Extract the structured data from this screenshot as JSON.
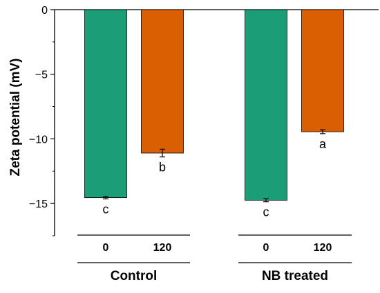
{
  "chart_data": {
    "type": "bar",
    "title": "",
    "xlabel": "",
    "ylabel": "Zeta potential (mV)",
    "ylim": [
      -17.5,
      0
    ],
    "yticks": [
      0,
      -5,
      -10,
      -15
    ],
    "ytick_labels": [
      "0",
      "−5",
      "−10",
      "−15"
    ],
    "grid": false,
    "groups": [
      {
        "name": "Control",
        "bars": [
          {
            "x_label": "0",
            "value": -14.55,
            "error": 0.1,
            "letter": "c",
            "color": "#1b9e77"
          },
          {
            "x_label": "120",
            "value": -11.1,
            "error": 0.3,
            "letter": "b",
            "color": "#d95f02"
          }
        ]
      },
      {
        "name": "NB treated",
        "bars": [
          {
            "x_label": "0",
            "value": -14.75,
            "error": 0.12,
            "letter": "c",
            "color": "#1b9e77"
          },
          {
            "x_label": "120",
            "value": -9.45,
            "error": 0.15,
            "letter": "a",
            "color": "#d95f02"
          }
        ]
      }
    ]
  }
}
